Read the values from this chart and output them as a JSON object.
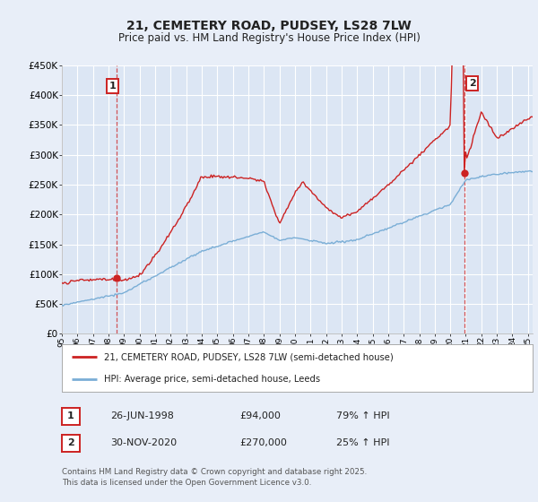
{
  "title": "21, CEMETERY ROAD, PUDSEY, LS28 7LW",
  "subtitle": "Price paid vs. HM Land Registry's House Price Index (HPI)",
  "legend_line1": "21, CEMETERY ROAD, PUDSEY, LS28 7LW (semi-detached house)",
  "legend_line2": "HPI: Average price, semi-detached house, Leeds",
  "footnote": "Contains HM Land Registry data © Crown copyright and database right 2025.\nThis data is licensed under the Open Government Licence v3.0.",
  "sale1_date": "26-JUN-1998",
  "sale1_price": "£94,000",
  "sale1_hpi": "79% ↑ HPI",
  "sale2_date": "30-NOV-2020",
  "sale2_price": "£270,000",
  "sale2_hpi": "25% ↑ HPI",
  "hpi_color": "#7aaed6",
  "sale_color": "#cc2222",
  "background_color": "#e8eef8",
  "plot_bg_color": "#dce6f4",
  "grid_color": "#ffffff",
  "ylim": [
    0,
    450000
  ],
  "yticks": [
    0,
    50000,
    100000,
    150000,
    200000,
    250000,
    300000,
    350000,
    400000,
    450000
  ],
  "ytick_labels": [
    "£0",
    "£50K",
    "£100K",
    "£150K",
    "£200K",
    "£250K",
    "£300K",
    "£350K",
    "£400K",
    "£450K"
  ],
  "sale1_x": 1998.5,
  "sale1_y": 94000,
  "sale2_x": 2020.92,
  "sale2_y": 270000,
  "marker_size": 6,
  "xlim_start": 1995,
  "xlim_end": 2025.3
}
